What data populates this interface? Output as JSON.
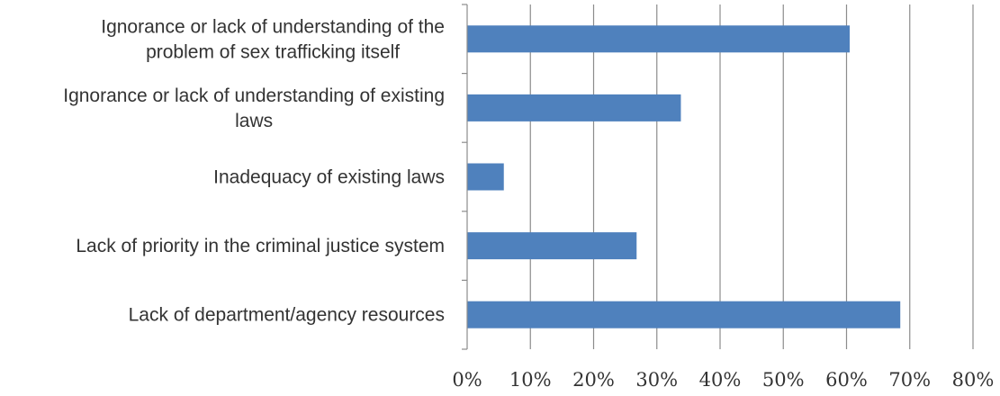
{
  "chart_data": {
    "type": "bar",
    "orientation": "horizontal",
    "categories": [
      [
        "Ignorance or lack of understanding of the",
        "problem of sex trafficking itself"
      ],
      [
        "Ignorance or lack of understanding of existing",
        "laws"
      ],
      [
        "Inadequacy of existing laws"
      ],
      [
        "Lack of priority in the criminal justice system"
      ],
      [
        "Lack of department/agency resources"
      ]
    ],
    "values": [
      0.605,
      0.338,
      0.058,
      0.268,
      0.685
    ],
    "x_ticks": [
      "0%",
      "10%",
      "20%",
      "30%",
      "40%",
      "50%",
      "60%",
      "70%",
      "80%"
    ],
    "xlim": [
      0,
      0.8
    ],
    "grid": "vertical",
    "title": "",
    "xlabel": "",
    "ylabel": "",
    "colors": {
      "bar": "#4F81BD",
      "grid": "#8C8C8C",
      "axis": "#8C8C8C",
      "text": "#333333"
    }
  }
}
